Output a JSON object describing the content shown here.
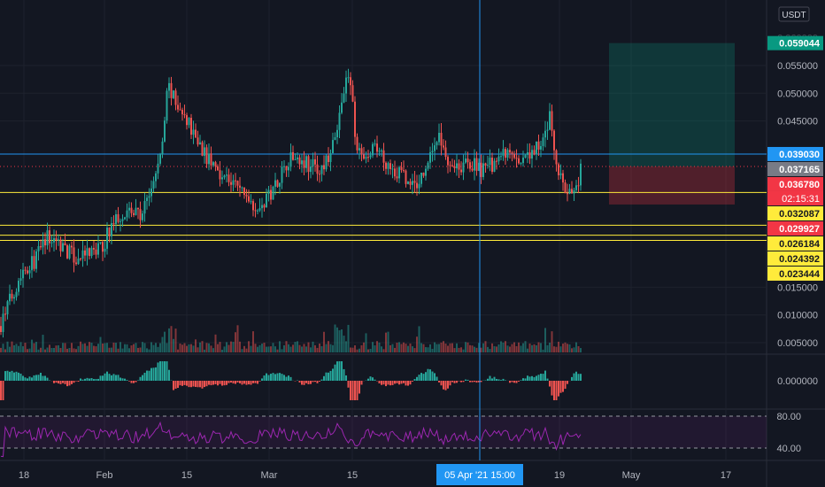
{
  "chart_data": {
    "type": "candlestick",
    "currency": "USDT",
    "price_axis_ticks": [
      "0.055000",
      "0.050000",
      "0.045000",
      "0.015000",
      "0.010000",
      "0.005000"
    ],
    "price_axis_top_partial": "0.060000",
    "x_ticks": [
      "18",
      "Feb",
      "15",
      "Mar",
      "15",
      "19",
      "May",
      "17"
    ],
    "crosshair_time_label": "05 Apr '21   15:00",
    "countdown": "02:15:31",
    "price_tags": [
      {
        "value": "0.059044",
        "color": "#089981",
        "text_color": "#ffffff"
      },
      {
        "value": "0.039030",
        "color": "#2196f3",
        "text_color": "#ffffff"
      },
      {
        "value": "0.037165",
        "color": "#787b86",
        "text_color": "#ffffff"
      },
      {
        "value": "0.036780",
        "color": "#f23645",
        "text_color": "#ffffff"
      },
      {
        "value": "0.032087",
        "color": "#ffeb3b",
        "text_color": "#131722"
      },
      {
        "value": "0.029927",
        "color": "#f23645",
        "text_color": "#ffffff"
      },
      {
        "value": "0.026184",
        "color": "#ffeb3b",
        "text_color": "#131722"
      },
      {
        "value": "0.024392",
        "color": "#ffeb3b",
        "text_color": "#131722"
      },
      {
        "value": "0.023444",
        "color": "#ffeb3b",
        "text_color": "#131722"
      }
    ],
    "position_box": {
      "entry": 0.03678,
      "target": 0.059044,
      "stop": 0.029927
    },
    "macd_axis": [
      "0.000000"
    ],
    "rsi_axis": [
      "80.00",
      "40.00"
    ],
    "colors": {
      "up": "#26a69a",
      "down": "#ef5350",
      "rsi": "#9c27b0",
      "hline": "#ffeb3b",
      "blue": "#2196f3"
    }
  }
}
